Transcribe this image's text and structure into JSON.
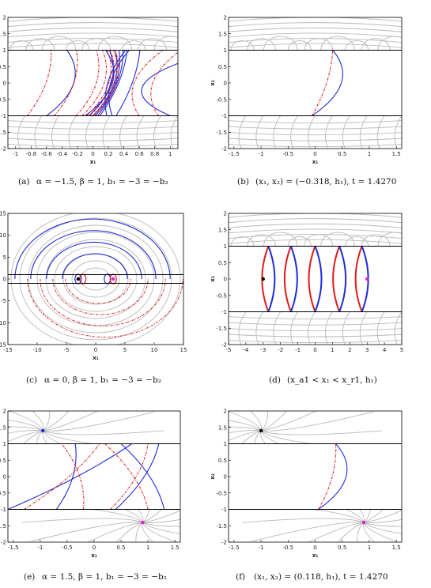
{
  "colors": {
    "stream": "#b9b9b9",
    "blue": "#1f2bd6",
    "red": "#e01b1b",
    "black": "#000000",
    "magenta": "#e21fd2"
  },
  "panels": [
    {
      "label": "(a)",
      "caption": "α = −1.5,  β = 1,  b₁ = −3 = −b₂"
    },
    {
      "label": "(b)",
      "caption": "(x₁, x₂) = (−0.318,  h₁),  t = 1.4270"
    },
    {
      "label": "(c)",
      "caption": "α = 0,  β = 1,  b₁ = −3 = −b₂"
    },
    {
      "label": "(d)",
      "caption": "(x_a1 < x₁ < x_r1, h₁)"
    },
    {
      "label": "(e)",
      "caption": "α = 1.5,  β = 1,  b₁ = −3 = −b₂"
    },
    {
      "label": "(f)",
      "caption": "(x₁, x₂) = (0.118,  h₁),  t = 1.4270"
    }
  ],
  "chart_data": [
    {
      "type": "line",
      "xlabel": "x₁",
      "ylabel": "",
      "xlim": [
        -1.1,
        1.1
      ],
      "ylim": [
        -2,
        2
      ],
      "xticks": [
        -1,
        -0.8,
        -0.6,
        -0.4,
        -0.2,
        0,
        0.2,
        0.4,
        0.6,
        0.8,
        1
      ],
      "yticks": [
        -2,
        -1.5,
        -1,
        -0.5,
        0,
        0.5,
        1,
        1.5,
        2
      ],
      "ytick_labels": [
        "-2",
        "-1.5",
        "-1",
        "-0.5",
        "0",
        "0.5",
        "1",
        "1.5",
        "2"
      ],
      "boundaries": [
        1,
        -1
      ],
      "blue_arcs": [
        [
          -0.6,
          0.12,
          0.2
        ],
        [
          -0.1,
          0.12,
          0.2
        ],
        [
          -0.05,
          0.12,
          0.14
        ],
        [
          0.0,
          0.13,
          0.12
        ],
        [
          0.03,
          0.14,
          0.1
        ],
        [
          0.06,
          0.15,
          0.08
        ],
        [
          0.09,
          0.16,
          0.06
        ],
        [
          0.18,
          0.11,
          -0.1
        ],
        [
          0.25,
          0.1,
          -0.12
        ],
        [
          0.3,
          0.14,
          0.05
        ],
        [
          1.0,
          0.3,
          -0.6
        ]
      ],
      "red_arcs": [
        [
          -0.85,
          0.14,
          0.08
        ],
        [
          -0.5,
          0.13,
          0.1
        ],
        [
          -0.22,
          0.12,
          0.12
        ],
        [
          -0.14,
          0.12,
          0.14
        ],
        [
          -0.08,
          0.12,
          0.14
        ],
        [
          -0.04,
          0.12,
          0.14
        ],
        [
          0.0,
          0.12,
          0.14
        ],
        [
          0.02,
          0.12,
          0.14
        ],
        [
          0.85,
          0.13,
          -0.2
        ],
        [
          0.6,
          0.14,
          -0.2
        ]
      ],
      "stream_top": "swirl",
      "stream_bottom": "flow"
    },
    {
      "type": "line",
      "xlabel": "x₁",
      "ylabel": "x₂",
      "xlim": [
        -1.6,
        1.6
      ],
      "ylim": [
        -2,
        2
      ],
      "xticks": [
        -1.5,
        -1,
        -0.5,
        0,
        0.5,
        1,
        1.5
      ],
      "yticks": [
        -2,
        -1.5,
        -1,
        -0.5,
        0,
        0.5,
        1,
        1.5,
        2
      ],
      "ytick_labels": [
        "-2",
        "-1.5",
        "-1",
        "-0.5",
        "0",
        "0.5",
        "1",
        "1.5",
        "2"
      ],
      "boundaries": [
        1,
        -1
      ],
      "blue_arcs": [
        [
          -0.06,
          0.12,
          0.22
        ]
      ],
      "red_arcs": [
        [
          -0.06,
          0.12,
          0.05
        ]
      ],
      "stream_top": "swirl",
      "stream_bottom": "flow"
    },
    {
      "type": "line",
      "xlabel": "x₁",
      "ylabel": "",
      "xlim": [
        -15,
        15
      ],
      "ylim": [
        -15,
        15
      ],
      "xticks": [
        -15,
        -10,
        -5,
        0,
        5,
        10,
        15
      ],
      "yticks": [
        -15,
        -10,
        -5,
        0,
        5,
        10,
        15
      ],
      "ytick_labels": [
        "-15",
        "-10",
        "-5",
        "0",
        "5",
        "10",
        "15"
      ],
      "boundaries": [
        1,
        -1
      ],
      "points": [
        {
          "x": -3,
          "y": 0,
          "color": "black"
        },
        {
          "x": 3,
          "y": 0,
          "color": "magenta"
        }
      ],
      "stream_top": "spiral",
      "stream_bottom": "spiral"
    },
    {
      "type": "line",
      "xlabel": "",
      "ylabel": "x₂",
      "xlim": [
        -5,
        5
      ],
      "ylim": [
        -2,
        2
      ],
      "xticks": [
        -5,
        -4,
        -3,
        -2,
        -1,
        0,
        1,
        2,
        3,
        4,
        5
      ],
      "yticks": [
        -2,
        -1.5,
        -1,
        -0.5,
        0,
        0.5,
        1,
        1.5,
        2
      ],
      "ytick_labels": [
        "-2",
        "-1.5",
        "-1",
        "-0.5",
        "0",
        "0.5",
        "1",
        "1.5",
        "2"
      ],
      "boundaries": [
        1,
        -1
      ],
      "lens_centers": [
        -2.7,
        -1.4,
        0.0,
        1.4,
        2.7
      ],
      "points": [
        {
          "x": -3,
          "y": 0,
          "color": "black"
        },
        {
          "x": 3,
          "y": 0,
          "color": "magenta"
        }
      ],
      "stream_top": "swirl",
      "stream_bottom": "flow"
    },
    {
      "type": "line",
      "xlabel": "x₁",
      "ylabel": "",
      "xlim": [
        -1.6,
        1.6
      ],
      "ylim": [
        -2,
        2
      ],
      "xticks": [
        -1.5,
        -1,
        -0.5,
        0,
        0.5,
        1,
        1.5
      ],
      "yticks": [
        -2,
        -1.5,
        -1,
        -0.5,
        0,
        0.5,
        1,
        1.5,
        2
      ],
      "ytick_labels": [
        "-2",
        "-1.5",
        "-1",
        "-0.5",
        "0",
        "0.5",
        "1",
        "1.5",
        "2"
      ],
      "boundaries": [
        1,
        -1
      ],
      "points": [
        {
          "x": -0.95,
          "y": 1.4,
          "color": "blue"
        },
        {
          "x": 0.9,
          "y": -1.4,
          "color": "magenta"
        }
      ],
      "stream_top": "node",
      "stream_bottom": "node"
    },
    {
      "type": "line",
      "xlabel": "x₁",
      "ylabel": "x₂",
      "xlim": [
        -1.6,
        1.6
      ],
      "ylim": [
        -2,
        2
      ],
      "xticks": [
        -1.5,
        -1,
        -0.5,
        0,
        0.5,
        1,
        1.5
      ],
      "yticks": [
        -2,
        -1.5,
        -1,
        -0.5,
        0,
        0.5,
        1,
        1.5,
        2
      ],
      "ytick_labels": [
        "-2",
        "-1.5",
        "-1",
        "-0.5",
        "0",
        "0.5",
        "1",
        "1.5",
        "2"
      ],
      "boundaries": [
        1,
        -1
      ],
      "blue_arcs": [
        [
          0.06,
          0.1,
          0.22
        ]
      ],
      "red_arcs": [
        [
          0.06,
          0.1,
          0.06
        ]
      ],
      "points": [
        {
          "x": -1.0,
          "y": 1.4,
          "color": "black"
        },
        {
          "x": 0.9,
          "y": -1.4,
          "color": "magenta"
        }
      ],
      "stream_top": "node",
      "stream_bottom": "node"
    }
  ]
}
